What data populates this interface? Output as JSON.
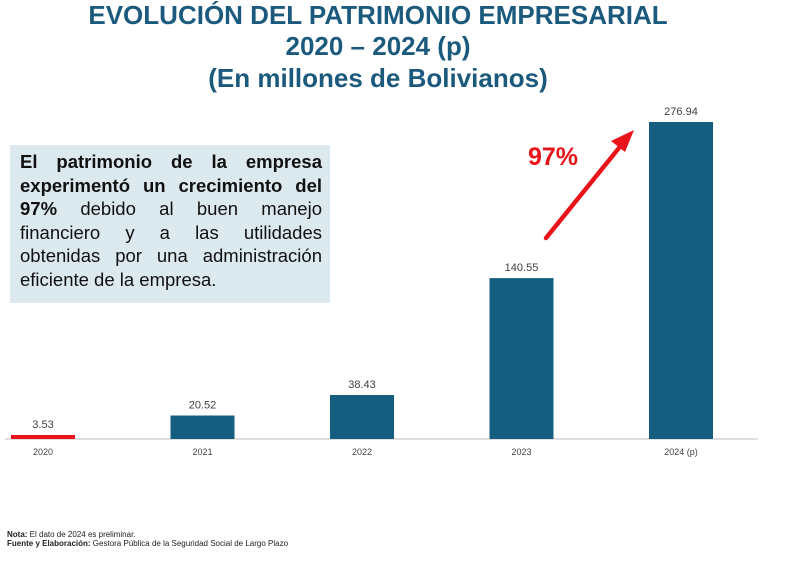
{
  "header": {
    "title_line1": "EVOLUCIÓN DEL PATRIMONIO EMPRESARIAL",
    "title_line2": "2020 – 2024 (p)",
    "title_line3": "(En millones de Bolivianos)"
  },
  "infobox": {
    "bold_text": "El patrimonio de la empresa experimentó un crecimiento del 97%",
    "text": " debido al buen manejo financiero y a las utilidades obtenidas por una administración eficiente de la empresa."
  },
  "growth_label": "97%",
  "chart_data": {
    "type": "bar",
    "categories": [
      "2020",
      "2021",
      "2022",
      "2023",
      "2024 (p)"
    ],
    "values": [
      3.53,
      20.52,
      38.43,
      140.55,
      276.94
    ],
    "value_labels": [
      "3.53",
      "20.52",
      "38.43",
      "140.55",
      "276.94"
    ],
    "ylim": [
      0,
      276.94
    ],
    "grid": false,
    "colors": {
      "bar": "#165e80",
      "highlight": "#e8141a",
      "axis": "#bfbfbf"
    }
  },
  "footer": {
    "note_label": "Nota:",
    "note_text": " El dato de 2024 es preliminar.",
    "source_label": "Fuente y Elaboración:",
    "source_text": " Gestora Pública de la Seguridad Social de Largo Plazo"
  }
}
